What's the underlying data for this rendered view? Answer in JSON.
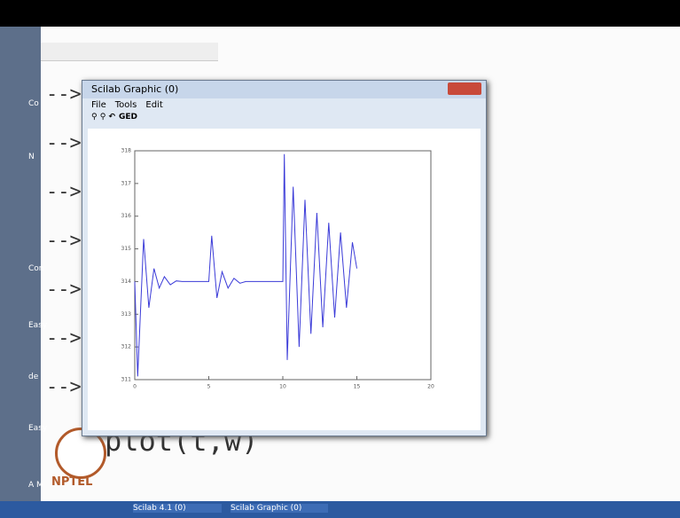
{
  "console": {
    "prompts": [
      "-->",
      "-->",
      "-->",
      "-->",
      "-->",
      "-->",
      "-->"
    ],
    "command": "plot(t,w)",
    "side_labels": [
      "Co",
      "N",
      "Con",
      "Easy",
      "de",
      "Easy",
      "A M"
    ]
  },
  "window": {
    "title": "Scilab Graphic (0)",
    "menu": [
      "File",
      "Tools",
      "Edit"
    ],
    "toolbar_label": "GED"
  },
  "logo": "NPTEL",
  "taskbar": {
    "items": [
      "Scilab 4.1 (0)",
      "Scilab Graphic (0)"
    ]
  },
  "chart_data": {
    "type": "line",
    "color": "#3b3bd8",
    "x": [
      0,
      0.2,
      0.6,
      0.95,
      1.3,
      1.65,
      2.0,
      2.4,
      2.8,
      3.2,
      5.0,
      5.2,
      5.55,
      5.9,
      6.3,
      6.7,
      7.1,
      7.5,
      10.0,
      10.1,
      10.3,
      10.7,
      11.1,
      11.5,
      11.9,
      12.3,
      12.7,
      13.1,
      13.5,
      13.9,
      14.3,
      14.7,
      15.0
    ],
    "values": [
      314,
      311.1,
      315.3,
      313.2,
      314.4,
      313.8,
      314.15,
      313.9,
      314.02,
      314,
      314,
      315.4,
      313.5,
      314.3,
      313.8,
      314.1,
      313.95,
      314,
      314,
      317.9,
      311.6,
      316.9,
      312.0,
      316.5,
      312.4,
      316.1,
      312.6,
      315.8,
      312.9,
      315.5,
      313.2,
      315.2,
      314.4
    ],
    "xlim": [
      0,
      20
    ],
    "xticks": [
      0,
      5,
      10,
      15,
      20
    ],
    "ylim": [
      311,
      318
    ],
    "yticks": [
      311,
      312,
      313,
      314,
      315,
      316,
      317,
      318
    ]
  }
}
